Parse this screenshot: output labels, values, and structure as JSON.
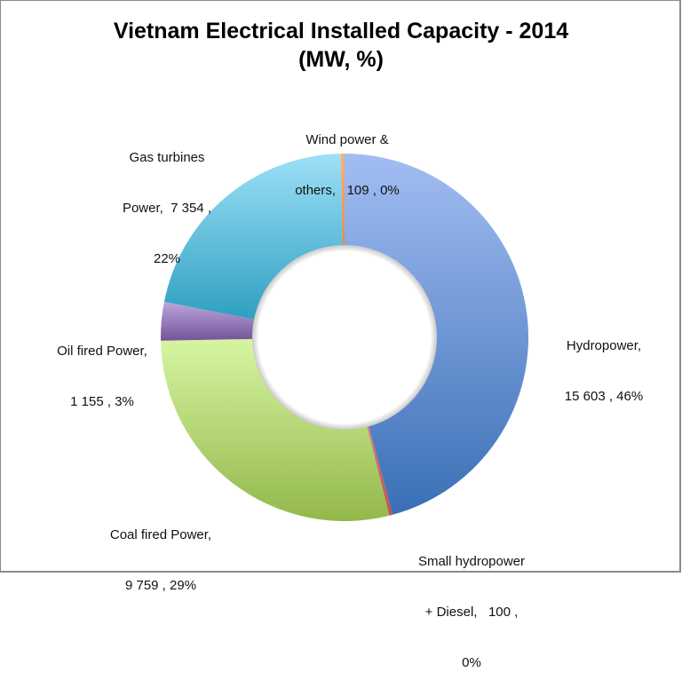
{
  "chart": {
    "title_line1": "Vietnam Electrical Installed Capacity - 2014",
    "title_line2": "(MW, %)"
  },
  "labels": {
    "wind": {
      "line1": "Wind power &",
      "line2": "others,   109 , 0%"
    },
    "gas": {
      "line1": "Gas turbines",
      "line2": "Power,  7 354 ,",
      "line3": "22%"
    },
    "hydro": {
      "line1": "Hydropower,",
      "line2": "15 603 , 46%"
    },
    "oil": {
      "line1": "Oil fired Power,",
      "line2": "1 155 , 3%"
    },
    "coal": {
      "line1": "Coal fired Power,",
      "line2": "9 759 , 29%"
    },
    "small_hydro": {
      "line1": "Small hydropower",
      "line2": "+ Diesel,   100 ,",
      "line3": "0%"
    }
  },
  "chart_data": {
    "type": "pie",
    "subtype": "donut",
    "title": "Vietnam Electrical Installed Capacity - 2014 (MW, %)",
    "unit": "MW",
    "categories": [
      "Hydropower",
      "Small hydropower + Diesel",
      "Coal fired Power",
      "Oil fired Power",
      "Gas turbines Power",
      "Wind power & others"
    ],
    "values": [
      15603,
      100,
      9759,
      1155,
      7354,
      109
    ],
    "percent_labels": [
      "46%",
      "0%",
      "29%",
      "3%",
      "22%",
      "0%"
    ],
    "colors": [
      "#5a87cf",
      "#c0504d",
      "#a9cd6e",
      "#8a6aaa",
      "#4ab0d0",
      "#f39a54"
    ],
    "start_angle": "12 o'clock",
    "direction": "clockwise",
    "legend": "none (data labels outside slices)"
  }
}
